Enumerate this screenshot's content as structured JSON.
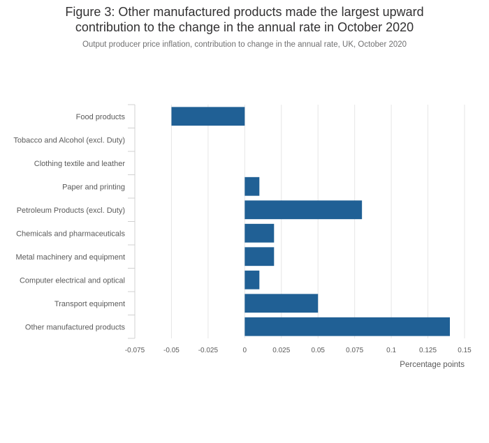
{
  "title_line1": "Figure 3: Other manufactured products made the largest upward",
  "title_line2": "contribution to the change in the annual rate in October 2020",
  "subtitle": "Output producer price inflation, contribution to change in the annual rate, UK, October 2020",
  "colors": {
    "bar": "#206095",
    "grid": "#e6e6e6",
    "text": "#5a5a5a"
  },
  "chart_data": {
    "type": "bar",
    "orientation": "horizontal",
    "categories": [
      "Food products",
      "Tobacco and Alcohol (excl. Duty)",
      "Clothing textile and leather",
      "Paper and printing",
      "Petroleum Products (excl. Duty)",
      "Chemicals and pharmaceuticals",
      "Metal machinery and equipment",
      "Computer electrical and optical",
      "Transport equipment",
      "Other manufactured products"
    ],
    "values": [
      -0.05,
      0,
      0,
      0.01,
      0.08,
      0.02,
      0.02,
      0.01,
      0.05,
      0.14
    ],
    "xlabel": "Percentage points",
    "ylabel": "",
    "xlim": [
      -0.075,
      0.15
    ],
    "xticks": [
      -0.075,
      -0.05,
      -0.025,
      0,
      0.025,
      0.05,
      0.075,
      0.1,
      0.125,
      0.15
    ],
    "xtick_labels": [
      "-0.075",
      "-0.05",
      "-0.025",
      "0",
      "0.025",
      "0.05",
      "0.075",
      "0.1",
      "0.125",
      "0.15"
    ],
    "grid": true,
    "legend": "none"
  }
}
